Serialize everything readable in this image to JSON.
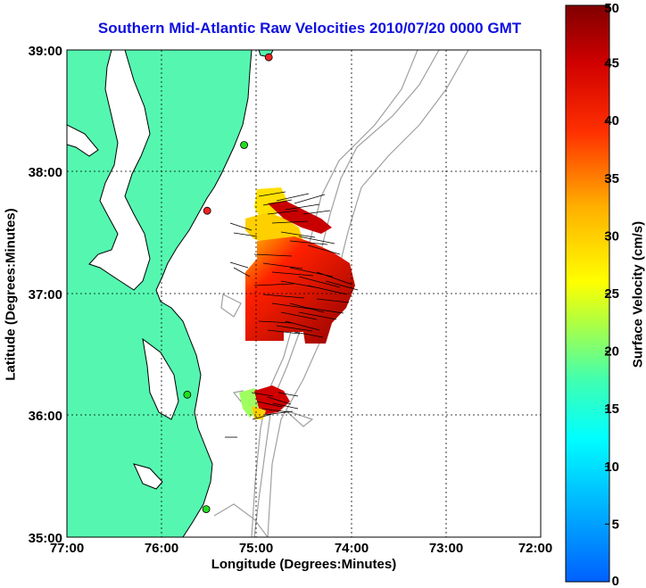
{
  "title": "Southern Mid-Atlantic Raw Velocities 2010/07/20 0000 GMT",
  "xlabel": "Longitude (Degrees:Minutes)",
  "ylabel": "Latitude (Degrees:Minutes)",
  "colorbar": {
    "label": "Surface Velocity (cm/s)",
    "ticks": [
      "0",
      "5",
      "10",
      "15",
      "20",
      "25",
      "30",
      "35",
      "40",
      "45",
      "50"
    ],
    "range": [
      0,
      50
    ]
  },
  "axes": {
    "x_ticks": [
      "77:00",
      "76:00",
      "75:00",
      "74:00",
      "73:00",
      "72:00"
    ],
    "y_ticks": [
      "39:00",
      "38:00",
      "37:00",
      "36:00",
      "35:00"
    ],
    "lon_range": [
      -77,
      -72
    ],
    "lat_range": [
      35,
      39
    ],
    "grid": "dotted"
  },
  "colors": {
    "land": "#55f7b0",
    "coastline": "#000000",
    "bathymetry": "#a0a0a0",
    "title": "#1010e0",
    "site_active": "#22dd22",
    "site_inactive": "#ee2222"
  },
  "radar_sites": [
    {
      "lon": -74.87,
      "lat": 38.94,
      "status": "inactive"
    },
    {
      "lon": -75.13,
      "lat": 38.22,
      "status": "active"
    },
    {
      "lon": -75.52,
      "lat": 37.68,
      "status": "inactive"
    },
    {
      "lon": -75.73,
      "lat": 36.17,
      "status": "active"
    },
    {
      "lon": -75.53,
      "lat": 35.23,
      "status": "active"
    }
  ]
}
